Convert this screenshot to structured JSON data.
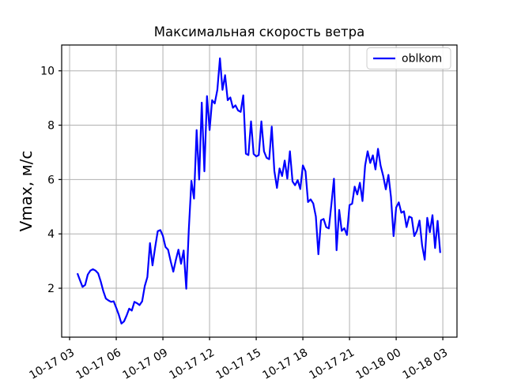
{
  "chart_data": {
    "type": "line",
    "title": "Максимальная скорость ветра",
    "xlabel": "",
    "ylabel": "Vmax, м/с",
    "grid": true,
    "legend_position": "upper right",
    "line_color": "#0000ff",
    "grid_color": "#b0b0b0",
    "spine_color": "#000000",
    "xlim": [
      2.49,
      27.91
    ],
    "ylim": [
      0.2,
      10.95
    ],
    "x_tick_hours": [
      3,
      6,
      9,
      12,
      15,
      18,
      21,
      24,
      27
    ],
    "x_tick_labels": [
      "10-17 03",
      "10-17 06",
      "10-17 09",
      "10-17 12",
      "10-17 15",
      "10-17 18",
      "10-17 21",
      "10-18 00",
      "10-18 03"
    ],
    "y_ticks": [
      2,
      4,
      6,
      8,
      10
    ],
    "series": [
      {
        "name": "oblkom",
        "color": "#0000ff",
        "x_start_hour": 3.5,
        "x_step_minutes": 10,
        "values": [
          2.55,
          2.3,
          2.05,
          2.12,
          2.5,
          2.65,
          2.7,
          2.65,
          2.55,
          2.25,
          1.9,
          1.62,
          1.55,
          1.5,
          1.52,
          1.28,
          1.02,
          0.7,
          0.78,
          1.0,
          1.25,
          1.18,
          1.5,
          1.45,
          1.38,
          1.52,
          2.08,
          2.41,
          3.66,
          2.84,
          3.5,
          4.1,
          4.14,
          3.93,
          3.52,
          3.42,
          2.99,
          2.61,
          3.04,
          3.42,
          2.9,
          3.39,
          1.98,
          4.15,
          5.95,
          5.3,
          7.82,
          6.0,
          8.83,
          6.3,
          9.07,
          7.82,
          8.92,
          8.8,
          9.3,
          10.46,
          9.3,
          9.84,
          8.92,
          9.02,
          8.64,
          8.73,
          8.54,
          8.49,
          9.1,
          6.95,
          6.9,
          8.14,
          6.94,
          6.85,
          6.9,
          8.14,
          7.04,
          6.8,
          6.75,
          7.95,
          6.32,
          5.69,
          6.41,
          6.13,
          6.7,
          6.03,
          7.04,
          5.93,
          5.79,
          5.98,
          5.65,
          6.52,
          6.3,
          5.17,
          5.27,
          5.12,
          4.64,
          3.25,
          4.5,
          4.55,
          4.25,
          4.2,
          5.07,
          6.03,
          3.4,
          4.88,
          4.11,
          4.21,
          3.96,
          5.06,
          5.11,
          5.74,
          5.45,
          5.88,
          5.21,
          6.51,
          7.04,
          6.61,
          6.89,
          6.37,
          7.13,
          6.51,
          6.13,
          5.64,
          6.17,
          5.36,
          3.92,
          4.97,
          5.16,
          4.78,
          4.83,
          4.25,
          4.64,
          4.59,
          3.92,
          4.11,
          4.49,
          3.58,
          3.05,
          4.59,
          4.06,
          4.69,
          3.48,
          4.48,
          3.3
        ]
      }
    ],
    "legend": [
      {
        "label": "oblkom",
        "color": "#0000ff"
      }
    ]
  }
}
